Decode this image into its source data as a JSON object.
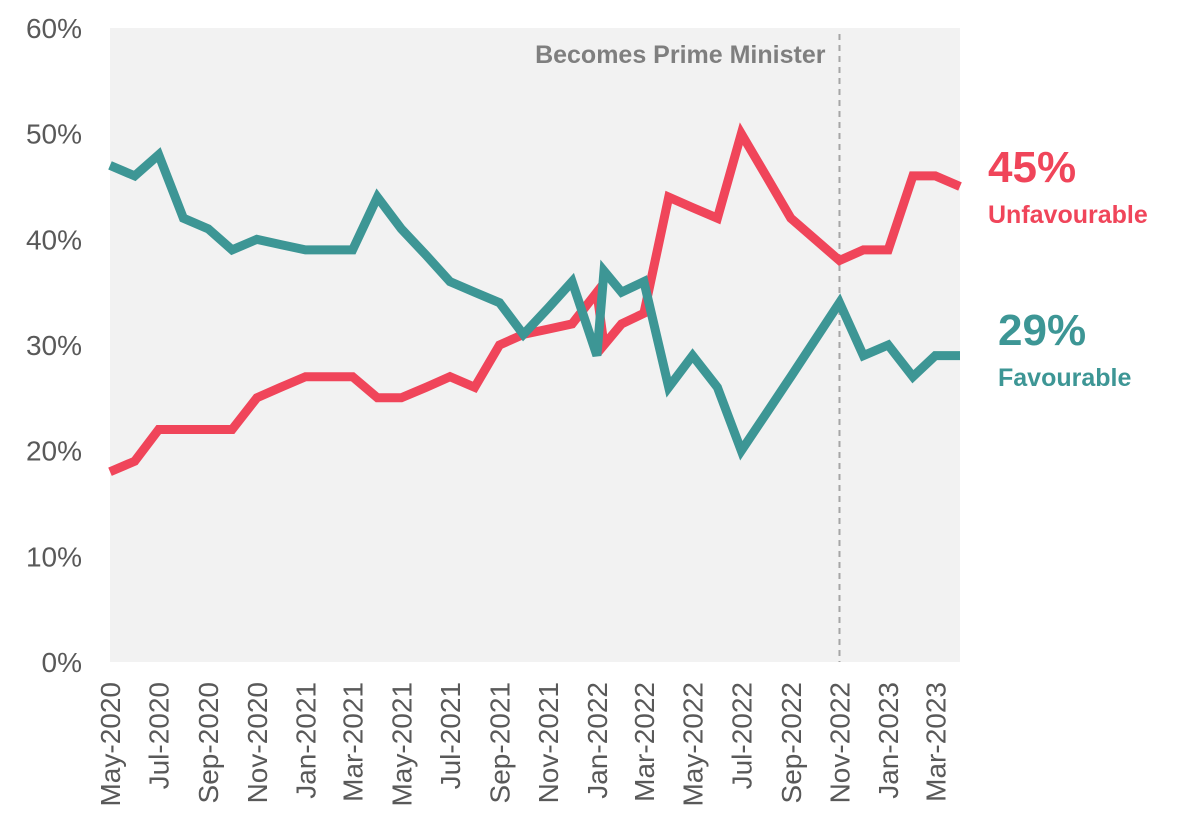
{
  "chart_data": {
    "type": "line",
    "title": "",
    "xlabel": "",
    "ylabel": "",
    "ylim": [
      0,
      60
    ],
    "yticks": [
      "0%",
      "10%",
      "20%",
      "30%",
      "40%",
      "50%",
      "60%"
    ],
    "x_tick_labels": [
      "May-2020",
      "Jul-2020",
      "Sep-2020",
      "Nov-2020",
      "Jan-2021",
      "Mar-2021",
      "May-2021",
      "Jul-2021",
      "Sep-2021",
      "Nov-2021",
      "Jan-2022",
      "Mar-2022",
      "May-2022",
      "Jul-2022",
      "Sep-2022",
      "Nov-2022",
      "Jan-2023",
      "Mar-2023"
    ],
    "x_range": [
      "2020-05-01",
      "2023-04-01"
    ],
    "grid": false,
    "plot_background": "#f2f2f2",
    "annotation": {
      "text": "Becomes Prime Minister",
      "date": "2022-11-01"
    },
    "series": [
      {
        "name": "Unfavourable",
        "color": "#f0455a",
        "end_label": "45%",
        "points": [
          [
            "2020-05-01",
            18
          ],
          [
            "2020-06-01",
            19
          ],
          [
            "2020-07-01",
            22
          ],
          [
            "2020-08-01",
            22
          ],
          [
            "2020-09-01",
            22
          ],
          [
            "2020-10-01",
            22
          ],
          [
            "2020-11-01",
            25
          ],
          [
            "2020-12-01",
            26
          ],
          [
            "2021-01-01",
            27
          ],
          [
            "2021-02-01",
            27
          ],
          [
            "2021-03-01",
            27
          ],
          [
            "2021-04-01",
            25
          ],
          [
            "2021-05-01",
            25
          ],
          [
            "2021-06-01",
            26
          ],
          [
            "2021-07-01",
            27
          ],
          [
            "2021-08-01",
            26
          ],
          [
            "2021-09-01",
            30
          ],
          [
            "2021-10-01",
            31
          ],
          [
            "2021-11-01",
            31.5
          ],
          [
            "2021-12-01",
            32
          ],
          [
            "2022-01-01",
            35
          ],
          [
            "2022-01-10",
            30
          ],
          [
            "2022-02-01",
            32
          ],
          [
            "2022-03-01",
            33
          ],
          [
            "2022-04-01",
            44
          ],
          [
            "2022-05-01",
            43
          ],
          [
            "2022-06-01",
            42
          ],
          [
            "2022-07-01",
            50
          ],
          [
            "2022-08-01",
            46
          ],
          [
            "2022-09-01",
            42
          ],
          [
            "2022-11-01",
            38
          ],
          [
            "2022-12-01",
            39
          ],
          [
            "2023-01-01",
            39
          ],
          [
            "2023-02-01",
            46
          ],
          [
            "2023-03-01",
            46
          ],
          [
            "2023-04-01",
            45
          ]
        ]
      },
      {
        "name": "Favourable",
        "color": "#3d9695",
        "end_label": "29%",
        "points": [
          [
            "2020-05-01",
            47
          ],
          [
            "2020-06-01",
            46
          ],
          [
            "2020-07-01",
            48
          ],
          [
            "2020-08-01",
            42
          ],
          [
            "2020-09-01",
            41
          ],
          [
            "2020-10-01",
            39
          ],
          [
            "2020-11-01",
            40
          ],
          [
            "2020-12-01",
            39.5
          ],
          [
            "2021-01-01",
            39
          ],
          [
            "2021-02-01",
            39
          ],
          [
            "2021-03-01",
            39
          ],
          [
            "2021-04-01",
            44
          ],
          [
            "2021-05-01",
            41
          ],
          [
            "2021-06-01",
            38.5
          ],
          [
            "2021-07-01",
            36
          ],
          [
            "2021-08-01",
            35
          ],
          [
            "2021-09-01",
            34
          ],
          [
            "2021-10-01",
            31
          ],
          [
            "2021-11-01",
            33.5
          ],
          [
            "2021-12-01",
            36
          ],
          [
            "2022-01-01",
            29
          ],
          [
            "2022-01-10",
            37
          ],
          [
            "2022-02-01",
            35
          ],
          [
            "2022-03-01",
            36
          ],
          [
            "2022-04-01",
            26
          ],
          [
            "2022-05-01",
            29
          ],
          [
            "2022-06-01",
            26
          ],
          [
            "2022-07-01",
            20
          ],
          [
            "2022-08-01",
            23.5
          ],
          [
            "2022-09-01",
            27
          ],
          [
            "2022-11-01",
            34
          ],
          [
            "2022-12-01",
            29
          ],
          [
            "2023-01-01",
            30
          ],
          [
            "2023-02-01",
            27
          ],
          [
            "2023-03-01",
            29
          ],
          [
            "2023-04-01",
            29
          ]
        ]
      }
    ]
  }
}
